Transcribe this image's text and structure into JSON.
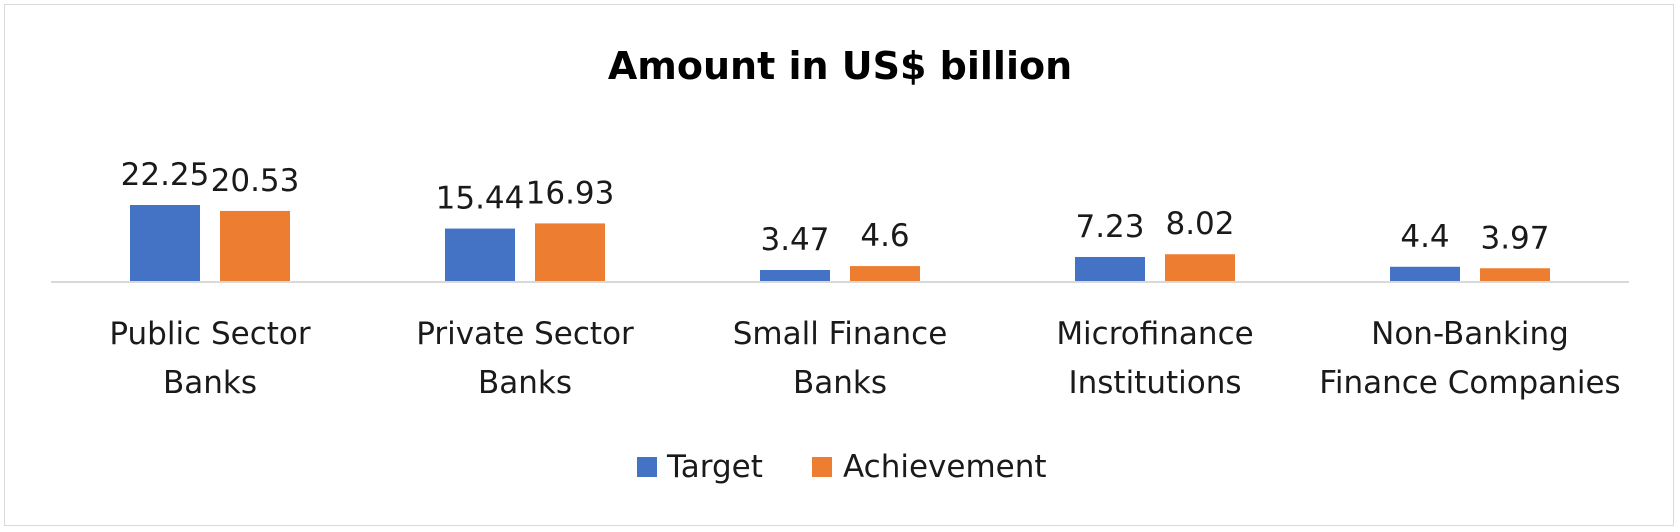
{
  "chart_data": {
    "type": "bar",
    "title": "Amount in US$ billion",
    "categories": [
      [
        "Public Sector",
        "Banks"
      ],
      [
        "Private Sector",
        "Banks"
      ],
      [
        "Small Finance",
        "Banks"
      ],
      [
        "Microfinance",
        "Institutions"
      ],
      [
        "Non-Banking",
        "Finance Companies"
      ]
    ],
    "series": [
      {
        "name": "Target",
        "values": [
          22.25,
          15.44,
          3.47,
          7.23,
          4.4
        ],
        "labels": [
          "22.25",
          "15.44",
          "3.47",
          "7.23",
          "4.4"
        ],
        "color": "#4472C4"
      },
      {
        "name": "Achievement",
        "values": [
          20.53,
          16.93,
          4.6,
          8.02,
          3.97
        ],
        "labels": [
          "20.53",
          "16.93",
          "4.6",
          "8.02",
          "3.97"
        ],
        "color": "#ED7D31"
      }
    ],
    "ylim": [
      0,
      22.25
    ],
    "legend": "bottom",
    "grid": false
  }
}
